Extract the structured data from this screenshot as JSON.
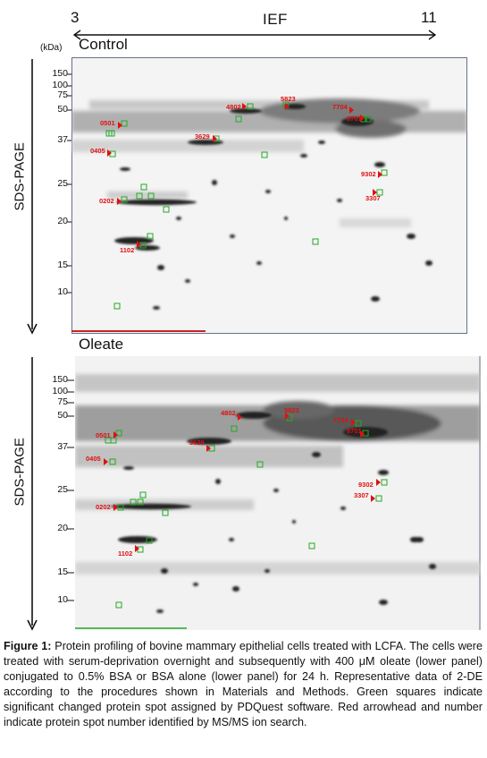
{
  "ief": {
    "label": "IEF",
    "left_value": "3",
    "right_value": "11"
  },
  "control_panel": {
    "title": "Control",
    "axis_label": "SDS-PAGE",
    "kda_label": "(kDa)",
    "ticks": [
      "150",
      "100",
      "75",
      "50",
      "37",
      "25",
      "20",
      "15",
      "10"
    ],
    "spots": [
      "0501",
      "0405",
      "0202",
      "1102",
      "3629",
      "4802",
      "5823",
      "7704",
      "8701",
      "9302",
      "3307"
    ]
  },
  "oleate_panel": {
    "title": "Oleate",
    "axis_label": "SDS-PAGE",
    "ticks": [
      "150",
      "100",
      "75",
      "50",
      "37",
      "25",
      "20",
      "15",
      "10"
    ],
    "spots": [
      "0501",
      "0405",
      "0202",
      "1102",
      "3629",
      "4802",
      "5823",
      "7704",
      "8701",
      "9302",
      "3307"
    ]
  },
  "caption": {
    "figure_label": "Figure 1:",
    "text": " Protein profiling of bovine mammary epithelial cells treated with LCFA. The cells were treated with serum-deprivation overnight and subsequently with 400 μM oleate (lower panel) conjugated to 0.5% BSA or BSA alone (lower panel) for 24 h. Representative data of 2-DE according to the procedures shown in Materials and Methods. Green squares indicate significant changed protein spot assigned by PDQuest software. Red arrowhead and number indicate protein spot number identified by MS/MS ion search."
  },
  "colors": {
    "marker_square": "#22aa22",
    "arrowhead": "#e01010"
  }
}
